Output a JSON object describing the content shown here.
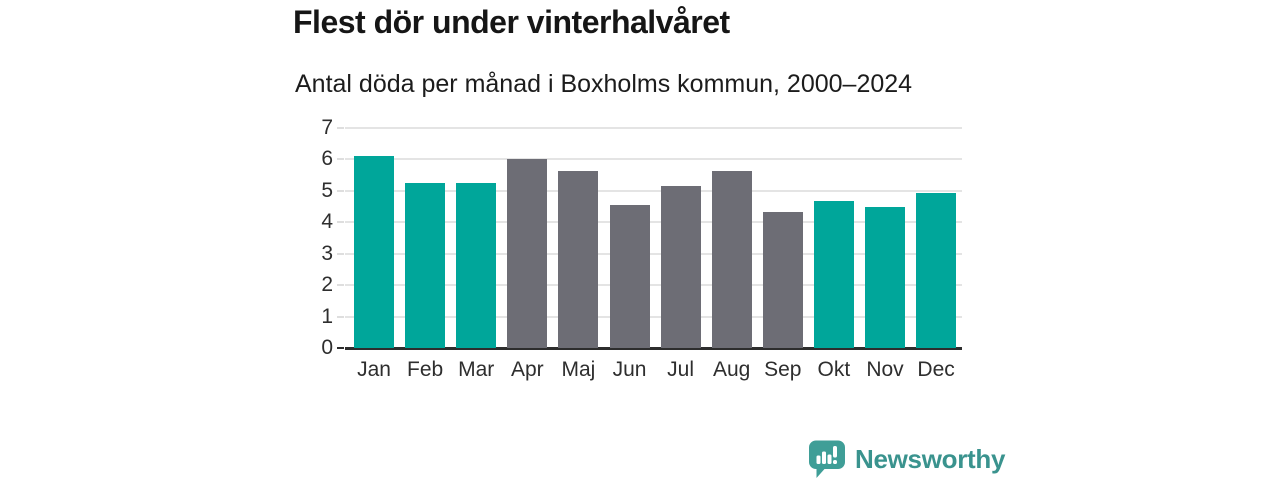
{
  "page": {
    "title": "Flest dör under vinterhalvåret",
    "subtitle": "Antal döda per månad i Boxholms kommun, 2000–2024"
  },
  "chart_data": {
    "type": "bar",
    "title": "Flest dör under vinterhalvåret",
    "subtitle": "Antal döda per månad i Boxholms kommun, 2000–2024",
    "categories": [
      "Jan",
      "Feb",
      "Mar",
      "Apr",
      "Maj",
      "Jun",
      "Jul",
      "Aug",
      "Sep",
      "Okt",
      "Nov",
      "Dec"
    ],
    "values": [
      6.12,
      5.24,
      5.24,
      6.0,
      5.64,
      4.56,
      5.16,
      5.64,
      4.32,
      4.68,
      4.48,
      4.92
    ],
    "bar_color_keys": [
      "winter",
      "winter",
      "winter",
      "summer",
      "summer",
      "summer",
      "summer",
      "summer",
      "summer",
      "winter",
      "winter",
      "winter"
    ],
    "colors": {
      "winter": "#00a69a",
      "summer": "#6d6d75"
    },
    "xlabel": "",
    "ylabel": "",
    "ylim": [
      0,
      7
    ],
    "yticks": [
      0,
      1,
      2,
      3,
      4,
      5,
      6,
      7
    ],
    "grid": true,
    "legend_position": "none"
  },
  "branding": {
    "logo_text": "Newsworthy",
    "logo_icon": "bar-chart-speech-bubble-icon",
    "logo_text_color": "#3a938e",
    "logo_icon_color": "#3f9e97"
  }
}
